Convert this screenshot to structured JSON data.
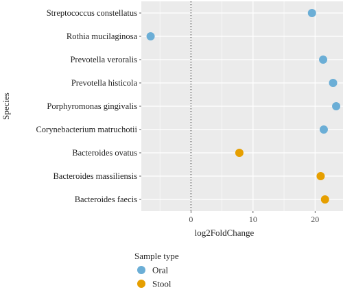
{
  "chart_data": {
    "type": "scatter",
    "xlabel": "log2FoldChange",
    "ylabel": "Species",
    "xlim": [
      -8,
      24.5
    ],
    "x_ticks": [
      0,
      10,
      20
    ],
    "reference_line_x": 0,
    "grid": true,
    "legend_position": "bottom-left",
    "categories": [
      "Streptococcus constellatus",
      "Rothia mucilaginosa",
      "Prevotella veroralis",
      "Prevotella histicola",
      "Porphyromonas gingivalis",
      "Corynebacterium matruchotii",
      "Bacteroides ovatus",
      "Bacteroides massiliensis",
      "Bacteroides faecis"
    ],
    "points": [
      {
        "category": "Streptococcus constellatus",
        "x": 19.5,
        "group": "Oral"
      },
      {
        "category": "Rothia mucilaginosa",
        "x": -6.5,
        "group": "Oral"
      },
      {
        "category": "Prevotella veroralis",
        "x": 21.3,
        "group": "Oral"
      },
      {
        "category": "Prevotella histicola",
        "x": 22.9,
        "group": "Oral"
      },
      {
        "category": "Porphyromonas gingivalis",
        "x": 23.4,
        "group": "Oral"
      },
      {
        "category": "Corynebacterium matruchotii",
        "x": 21.4,
        "group": "Oral"
      },
      {
        "category": "Bacteroides ovatus",
        "x": 7.8,
        "group": "Stool"
      },
      {
        "category": "Bacteroides massiliensis",
        "x": 20.9,
        "group": "Stool"
      },
      {
        "category": "Bacteroides faecis",
        "x": 21.6,
        "group": "Stool"
      }
    ],
    "legend": {
      "title": "Sample type",
      "items": [
        {
          "name": "Oral",
          "color": "#6baed6"
        },
        {
          "name": "Stool",
          "color": "#e69f00"
        }
      ]
    },
    "colors": {
      "panel_background": "#ebebeb",
      "grid": "#ffffff",
      "reference_line": "#333333"
    }
  }
}
